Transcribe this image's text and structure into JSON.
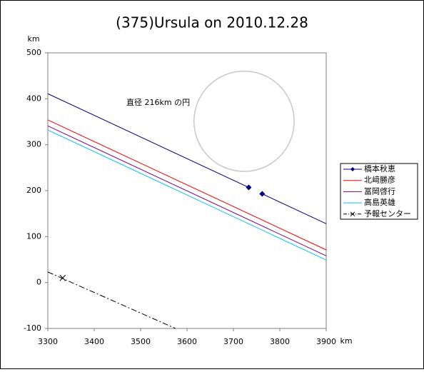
{
  "chart_data": {
    "type": "line",
    "title": "(375)Ursula on 2010.12.28",
    "xlabel": "km",
    "ylabel": "km",
    "xlim": [
      3300,
      3900
    ],
    "xticks": [
      3300,
      3400,
      3500,
      3600,
      3700,
      3800,
      3900
    ],
    "ylim": [
      -100,
      500
    ],
    "yticks": [
      -100,
      0,
      100,
      200,
      300,
      400,
      500
    ],
    "legend": "right",
    "circle": {
      "x": 3723,
      "y": 351,
      "diameter": 216,
      "label": "直径 216km の円",
      "color": "#c8c8c8"
    },
    "series": [
      {
        "name": "橋本秋恵",
        "color": "#000080",
        "marker": "diamond",
        "x": [
          3300,
          3733,
          null,
          3762,
          3900
        ],
        "values": [
          411,
          207,
          null,
          193,
          128
        ],
        "points": {
          "x": [
            3733,
            3762
          ],
          "values": [
            207,
            193
          ]
        }
      },
      {
        "name": "北﨑勝彦",
        "color": "#ff0000",
        "x": [
          3300,
          3900
        ],
        "values": [
          354,
          71
        ]
      },
      {
        "name": "冨岡啓行",
        "color": "#800080",
        "x": [
          3300,
          3900
        ],
        "values": [
          341,
          58
        ]
      },
      {
        "name": "高島英雄",
        "color": "#00c0ff",
        "x": [
          3300,
          3900
        ],
        "values": [
          332,
          49
        ]
      },
      {
        "name": "予報センター",
        "color": "#000000",
        "dash": "dash-dot",
        "marker": "x",
        "x": [
          3300,
          3575
        ],
        "values": [
          23,
          -100
        ],
        "points": {
          "x": [
            3332
          ],
          "values": [
            10
          ]
        }
      }
    ]
  }
}
